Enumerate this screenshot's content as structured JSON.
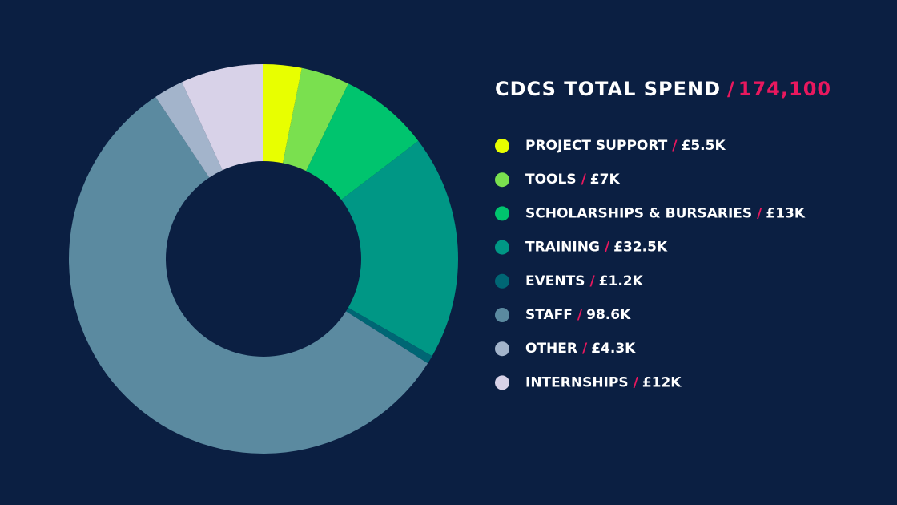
{
  "chart_data": {
    "type": "donut",
    "title": "CDCS TOTAL SPEND",
    "separator": "/",
    "total": {
      "value": 174100,
      "label": "174,100"
    },
    "categories": [
      "PROJECT SUPPORT",
      "TOOLS",
      "SCHOLARSHIPS & BURSARIES",
      "TRAINING",
      "EVENTS",
      "STAFF",
      "OTHER",
      "INTERNSHIPS"
    ],
    "values": [
      5500,
      7000,
      13000,
      32500,
      1200,
      98600,
      4300,
      12000
    ],
    "value_labels": [
      "£5.5K",
      "£7K",
      "£13K",
      "£32.5K",
      "£1.2K",
      "98.6K",
      "£4.3K",
      "£12K"
    ],
    "colors": [
      "#e8ff00",
      "#7ae04f",
      "#00c46e",
      "#009785",
      "#006674",
      "#5b8aa0",
      "#a3b4cb",
      "#d8d2e8"
    ],
    "accent_color": "#e8185e",
    "legend": "right"
  }
}
